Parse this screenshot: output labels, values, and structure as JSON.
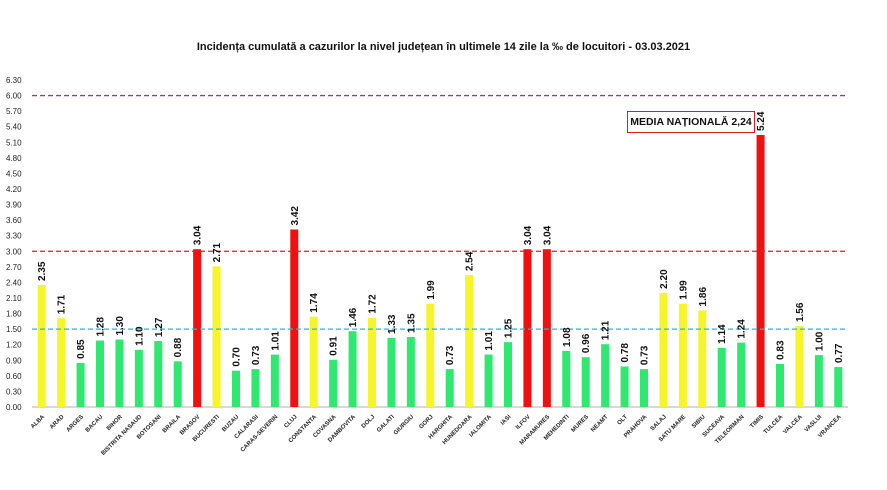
{
  "chart_data": {
    "type": "bar",
    "title": "Incidența cumulată a cazurilor la nivel județean în ultimele 14 zile la ‰ de locuitori - 03.03.2021",
    "ylim": [
      0,
      6.3
    ],
    "yticks": [
      "0.00",
      "0.30",
      "0.60",
      "0.90",
      "1.20",
      "1.50",
      "1.80",
      "2.10",
      "2.40",
      "2.70",
      "3.00",
      "3.30",
      "3.60",
      "3.90",
      "4.20",
      "4.50",
      "4.80",
      "5.10",
      "5.40",
      "5.70",
      "6.00",
      "6.30"
    ],
    "grid": false,
    "categories": [
      "ALBA",
      "ARAD",
      "ARGES",
      "BACAU",
      "BIHOR",
      "BISTRITA NASAUD",
      "BOTOSANI",
      "BRAILA",
      "BRASOV",
      "BUCURESTI",
      "BUZAU",
      "CALARASI",
      "CARAS-SEVERIN",
      "CLUJ",
      "CONSTANTA",
      "COVASNA",
      "DAMBOVITA",
      "DOLJ",
      "GALATI",
      "GIURGIU",
      "GORJ",
      "HARGHITA",
      "HUNEDOARA",
      "IALOMITA",
      "IASI",
      "ILFOV",
      "MARAMURES",
      "MEHEDINTI",
      "MURES",
      "NEAMT",
      "OLT",
      "PRAHOVA",
      "SALAJ",
      "SATU MARE",
      "SIBIU",
      "SUCEAVA",
      "TELEORMAN",
      "TIMIS",
      "TULCEA",
      "VALCEA",
      "VASLUI",
      "VRANCEA"
    ],
    "values": [
      2.35,
      1.71,
      0.85,
      1.28,
      1.3,
      1.1,
      1.27,
      0.88,
      3.04,
      2.71,
      0.7,
      0.73,
      1.01,
      3.42,
      1.74,
      0.91,
      1.46,
      1.72,
      1.33,
      1.35,
      1.99,
      0.73,
      2.54,
      1.01,
      1.25,
      3.04,
      3.04,
      1.08,
      0.96,
      1.21,
      0.78,
      0.73,
      2.2,
      1.99,
      1.86,
      1.14,
      1.24,
      5.24,
      0.83,
      1.56,
      1.0,
      0.77
    ],
    "value_labels": [
      "2.35",
      "1.71",
      "0.85",
      "1.28",
      "1.30",
      "1.10",
      "1.27",
      "0.88",
      "3.04",
      "2.71",
      "0.70",
      "0.73",
      "1.01",
      "3.42",
      "1.74",
      "0.91",
      "1.46",
      "1.72",
      "1.33",
      "1.35",
      "1.99",
      "0.73",
      "2.54",
      "1.01",
      "1.25",
      "3.04",
      "3.04",
      "1.08",
      "0.96",
      "1.21",
      "0.78",
      "0.73",
      "2.20",
      "1.99",
      "1.86",
      "1.14",
      "1.24",
      "5.24",
      "0.83",
      "1.56",
      "1.00",
      "0.77"
    ],
    "thresholds": [
      {
        "value": 6.0,
        "color": "#7b3fbf"
      },
      {
        "value": 3.0,
        "color": "#e02020"
      },
      {
        "value": 1.5,
        "color": "#29b6d6"
      }
    ],
    "annotation": "MEDIA NAȚIONALĂ 2,24",
    "colors": {
      "green": "#2ee86f",
      "yellow": "#f5f52a",
      "red": "#f01010"
    }
  }
}
